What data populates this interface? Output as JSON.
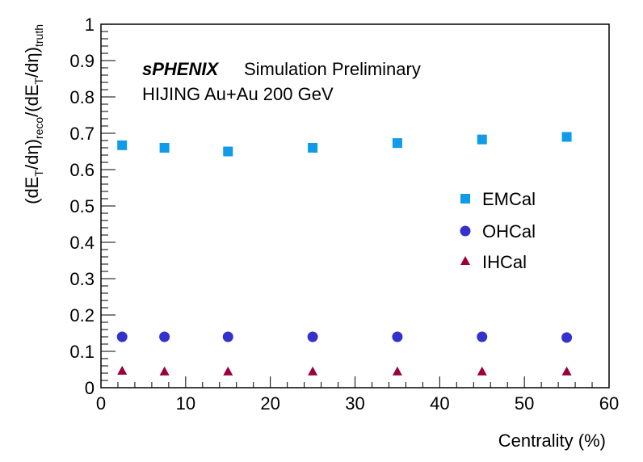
{
  "chart_data": {
    "type": "scatter",
    "annotations": {
      "experiment": "sPHENIX",
      "status": "Simulation Preliminary",
      "sample": "HIJING Au+Au 200 GeV"
    },
    "xlabel": "Centrality (%)",
    "ylabel": {
      "p1": "(dE",
      "s1": "T",
      "p2": "/dη)",
      "s2": "reco",
      "p3": "/(dE",
      "s3": "T",
      "p4": "/dη)",
      "s4": "truth"
    },
    "xlim": [
      0,
      60
    ],
    "ylim": [
      0,
      1
    ],
    "x_ticks": [
      0,
      10,
      20,
      30,
      40,
      50,
      60
    ],
    "y_ticks": [
      0,
      0.1,
      0.2,
      0.3,
      0.4,
      0.5,
      0.6,
      0.7,
      0.8,
      0.9,
      1
    ],
    "x_tick_labels": [
      "0",
      "10",
      "20",
      "30",
      "40",
      "50",
      "60"
    ],
    "y_tick_labels": [
      "0",
      "0.1",
      "0.2",
      "0.3",
      "0.4",
      "0.5",
      "0.6",
      "0.7",
      "0.8",
      "0.9",
      "1"
    ],
    "grid": false,
    "legend_position": "right",
    "x": [
      2.5,
      7.5,
      15,
      25,
      35,
      45,
      55
    ],
    "series": [
      {
        "name": "EMCal",
        "marker": "square",
        "color": "#0f9be8",
        "values": [
          0.667,
          0.66,
          0.65,
          0.66,
          0.673,
          0.683,
          0.69
        ]
      },
      {
        "name": "OHCal",
        "marker": "circle",
        "color": "#3333cc",
        "values": [
          0.14,
          0.14,
          0.14,
          0.14,
          0.14,
          0.14,
          0.138
        ]
      },
      {
        "name": "IHCal",
        "marker": "triangle",
        "color": "#99003d",
        "values": [
          0.047,
          0.045,
          0.045,
          0.045,
          0.045,
          0.045,
          0.045
        ]
      }
    ]
  }
}
